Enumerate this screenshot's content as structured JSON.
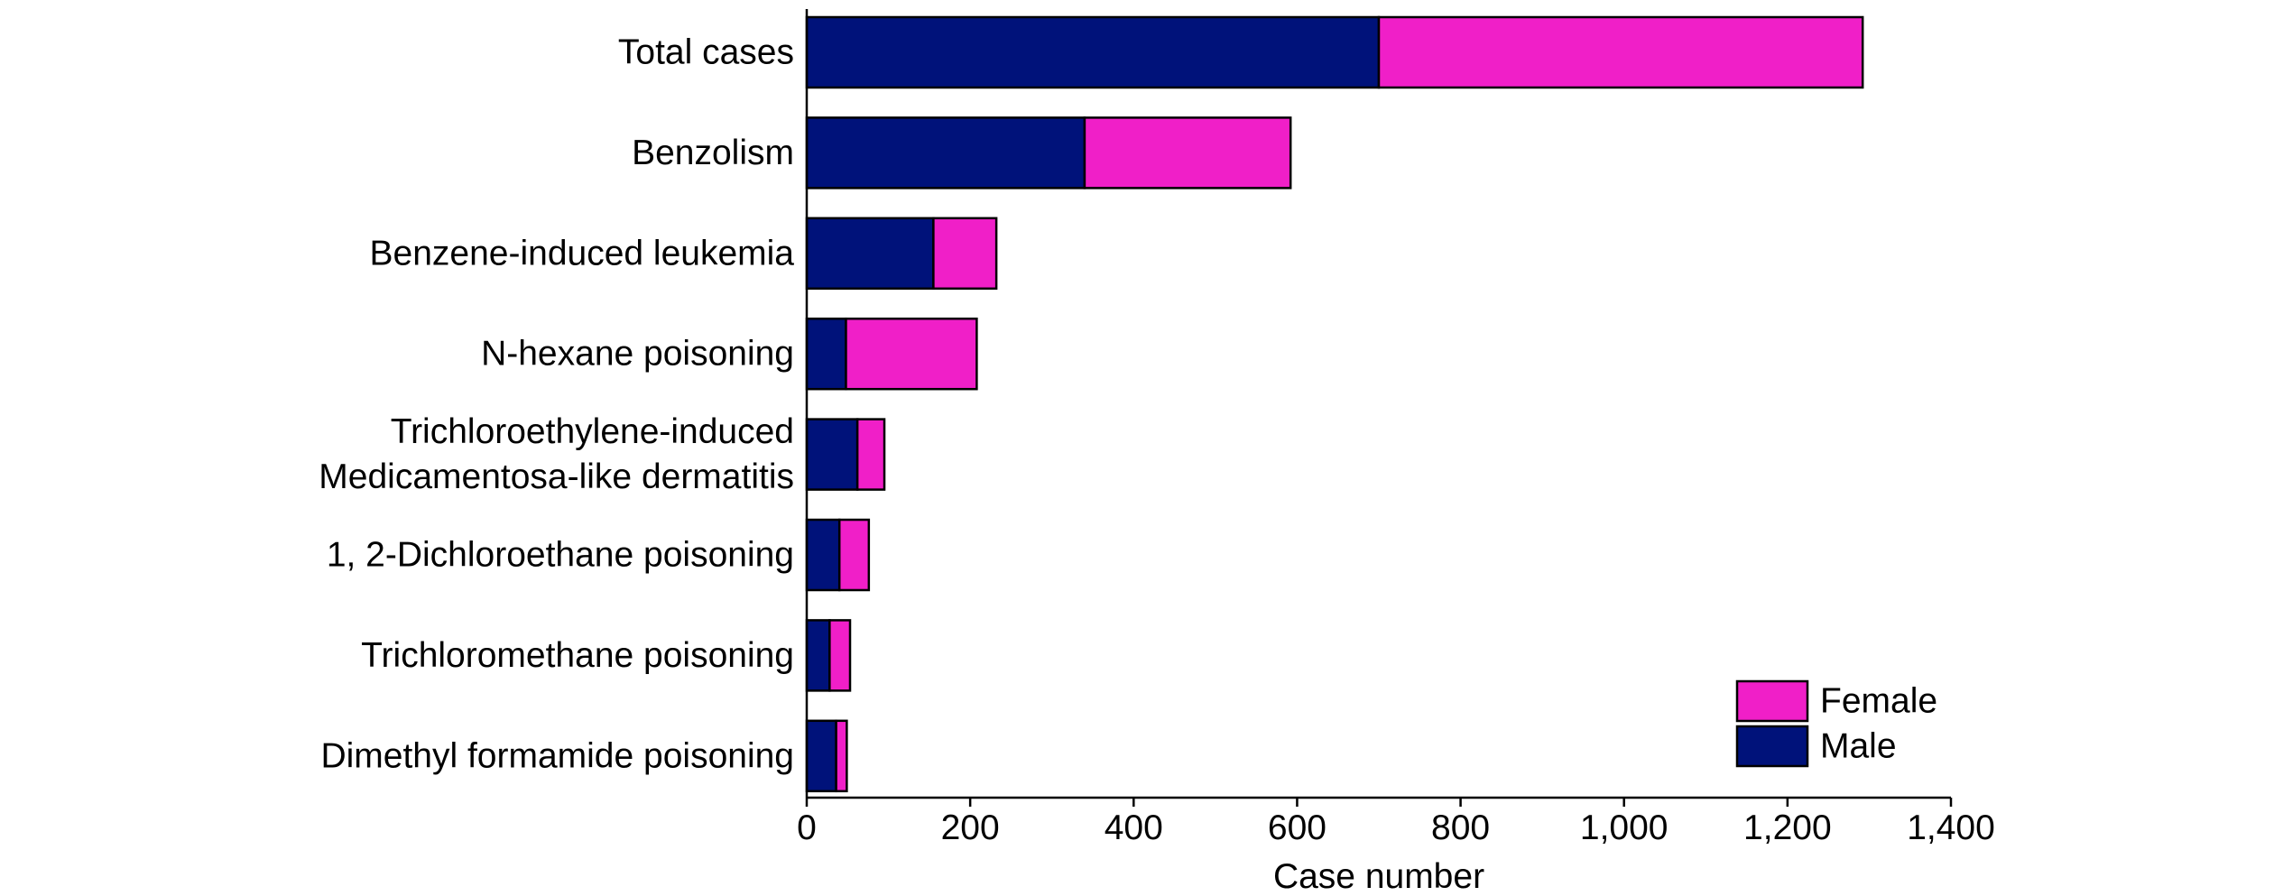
{
  "chart_data": {
    "type": "bar",
    "orientation": "horizontal",
    "stacked": true,
    "categories": [
      [
        "Total cases"
      ],
      [
        "Benzolism"
      ],
      [
        "Benzene-induced leukemia"
      ],
      [
        "N-hexane poisoning"
      ],
      [
        "Trichloroethylene-induced",
        "Medicamentosa-like dermatitis"
      ],
      [
        "1, 2-Dichloroethane poisoning"
      ],
      [
        "Trichloromethane poisoning"
      ],
      [
        "Dimethyl formamide poisoning"
      ]
    ],
    "series": [
      {
        "name": "Male",
        "color": "#00127a",
        "values": [
          700,
          340,
          155,
          48,
          62,
          40,
          28,
          36
        ]
      },
      {
        "name": "Female",
        "color": "#f01fc8",
        "values": [
          592,
          252,
          77,
          160,
          33,
          36,
          25,
          13
        ]
      }
    ],
    "legend_order": [
      "Female",
      "Male"
    ],
    "legend_position": "bottom-right",
    "xlabel": "Case number",
    "ylabel": "",
    "xlim": [
      0,
      1400
    ],
    "xticks": [
      0,
      200,
      400,
      600,
      800,
      1000,
      1200,
      1400
    ],
    "xtick_labels": [
      "0",
      "200",
      "400",
      "600",
      "800",
      "1,000",
      "1,200",
      "1,400"
    ],
    "grid": false
  }
}
